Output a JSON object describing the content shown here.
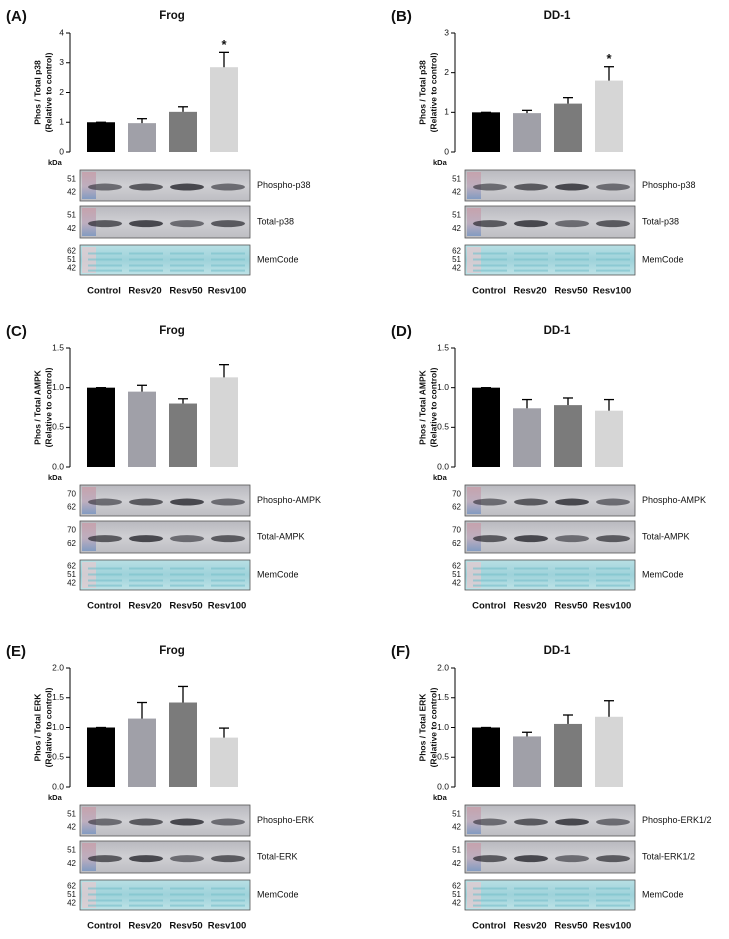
{
  "chart_data": [
    {
      "type": "bar",
      "panel": "(A)",
      "title": "Frog",
      "ylabel": [
        "Phos / Total p38",
        "(Relative to control)"
      ],
      "categories": [
        "Control",
        "Resv20",
        "Resv50",
        "Resv100"
      ],
      "values": [
        1,
        0.97,
        1.35,
        2.85
      ],
      "errors": [
        0,
        0.15,
        0.17,
        0.5
      ],
      "colors": [
        "#000000",
        "#a0a0a8",
        "#7b7b7b",
        "#d6d6d6"
      ],
      "ylim": [
        0,
        4
      ],
      "yticks": [
        0,
        1,
        2,
        3,
        4
      ],
      "annotations": [
        {
          "text": "*",
          "category": "Resv100"
        }
      ]
    },
    {
      "type": "bar",
      "panel": "(B)",
      "title": "DD-1",
      "ylabel": [
        "Phos / Total p38",
        "(Relative to control)"
      ],
      "categories": [
        "Control",
        "Resv20",
        "Resv50",
        "Resv100"
      ],
      "values": [
        1,
        0.98,
        1.22,
        1.8
      ],
      "errors": [
        0,
        0.07,
        0.15,
        0.35
      ],
      "colors": [
        "#000000",
        "#a0a0a8",
        "#7b7b7b",
        "#d6d6d6"
      ],
      "ylim": [
        0,
        3
      ],
      "yticks": [
        0,
        1,
        2,
        3
      ],
      "annotations": [
        {
          "text": "*",
          "category": "Resv100"
        }
      ]
    },
    {
      "type": "bar",
      "panel": "(C)",
      "title": "Frog",
      "ylabel": [
        "Phos / Total AMPK",
        "(Relative to control)"
      ],
      "categories": [
        "Control",
        "Resv20",
        "Resv50",
        "Resv100"
      ],
      "values": [
        1,
        0.95,
        0.8,
        1.13
      ],
      "errors": [
        0,
        0.08,
        0.06,
        0.16
      ],
      "colors": [
        "#000000",
        "#a0a0a8",
        "#7b7b7b",
        "#d6d6d6"
      ],
      "ylim": [
        0,
        1.5
      ],
      "yticks": [
        {
          "value": 0,
          "label": "0.0"
        },
        0.5,
        {
          "value": 1,
          "label": "1.0"
        },
        1.5
      ]
    },
    {
      "type": "bar",
      "panel": "(D)",
      "title": "DD-1",
      "ylabel": [
        "Phos / Total AMPK",
        "(Relative to control)"
      ],
      "categories": [
        "Control",
        "Resv20",
        "Resv50",
        "Resv100"
      ],
      "values": [
        1,
        0.74,
        0.78,
        0.71
      ],
      "errors": [
        0,
        0.11,
        0.09,
        0.14
      ],
      "colors": [
        "#000000",
        "#a0a0a8",
        "#7b7b7b",
        "#d6d6d6"
      ],
      "ylim": [
        0,
        1.5
      ],
      "yticks": [
        {
          "value": 0,
          "label": "0.0"
        },
        0.5,
        {
          "value": 1,
          "label": "1.0"
        },
        1.5
      ]
    },
    {
      "type": "bar",
      "panel": "(E)",
      "title": "Frog",
      "ylabel": [
        "Phos / Total ERK",
        "(Relative to control)"
      ],
      "categories": [
        "Control",
        "Resv20",
        "Resv50",
        "Resv100"
      ],
      "values": [
        1,
        1.15,
        1.42,
        0.83
      ],
      "errors": [
        0,
        0.27,
        0.27,
        0.16
      ],
      "colors": [
        "#000000",
        "#a0a0a8",
        "#7b7b7b",
        "#d6d6d6"
      ],
      "ylim": [
        0,
        2
      ],
      "yticks": [
        {
          "value": 0,
          "label": "0.0"
        },
        0.5,
        {
          "value": 1,
          "label": "1.0"
        },
        1.5,
        {
          "value": 2,
          "label": "2.0"
        }
      ]
    },
    {
      "type": "bar",
      "panel": "(F)",
      "title": "DD-1",
      "ylabel": [
        "Phos / Total ERK",
        "(Relative to control)"
      ],
      "categories": [
        "Control",
        "Resv20",
        "Resv50",
        "Resv100"
      ],
      "values": [
        1,
        0.85,
        1.06,
        1.18
      ],
      "errors": [
        0,
        0.07,
        0.15,
        0.27
      ],
      "colors": [
        "#000000",
        "#a0a0a8",
        "#7b7b7b",
        "#d6d6d6"
      ],
      "ylim": [
        0,
        2
      ],
      "yticks": [
        {
          "value": 0,
          "label": "0.0"
        },
        0.5,
        {
          "value": 1,
          "label": "1.0"
        },
        1.5,
        {
          "value": 2,
          "label": "2.0"
        }
      ]
    }
  ],
  "blots": [
    {
      "unit": "kDa",
      "strips": [
        {
          "label": "Phospho-p38",
          "markers": [
            51,
            42
          ]
        },
        {
          "label": "Total-p38",
          "markers": [
            51,
            42
          ]
        },
        {
          "label": "MemCode",
          "markers": [
            62,
            51,
            42
          ]
        }
      ]
    },
    {
      "unit": "kDa",
      "strips": [
        {
          "label": "Phospho-p38",
          "markers": [
            51,
            42
          ]
        },
        {
          "label": "Total-p38",
          "markers": [
            51,
            42
          ]
        },
        {
          "label": "MemCode",
          "markers": [
            62,
            51,
            42
          ]
        }
      ]
    },
    {
      "unit": "kDa",
      "strips": [
        {
          "label": "Phospho-AMPK",
          "markers": [
            70,
            62
          ]
        },
        {
          "label": "Total-AMPK",
          "markers": [
            70,
            62
          ]
        },
        {
          "label": "MemCode",
          "markers": [
            62,
            51,
            42
          ]
        }
      ]
    },
    {
      "unit": "kDa",
      "strips": [
        {
          "label": "Phospho-AMPK",
          "markers": [
            70,
            62
          ]
        },
        {
          "label": "Total-AMPK",
          "markers": [
            70,
            62
          ]
        },
        {
          "label": "MemCode",
          "markers": [
            62,
            51,
            42
          ]
        }
      ]
    },
    {
      "unit": "kDa",
      "strips": [
        {
          "label": "Phospho-ERK",
          "markers": [
            51,
            42
          ]
        },
        {
          "label": "Total-ERK",
          "markers": [
            51,
            42
          ]
        },
        {
          "label": "MemCode",
          "markers": [
            62,
            51,
            42
          ]
        }
      ]
    },
    {
      "unit": "kDa",
      "strips": [
        {
          "label": "Phospho-ERK1/2",
          "markers": [
            51,
            42
          ]
        },
        {
          "label": "Total-ERK1/2",
          "markers": [
            51,
            42
          ]
        },
        {
          "label": "MemCode",
          "markers": [
            62,
            51,
            42
          ]
        }
      ]
    }
  ]
}
